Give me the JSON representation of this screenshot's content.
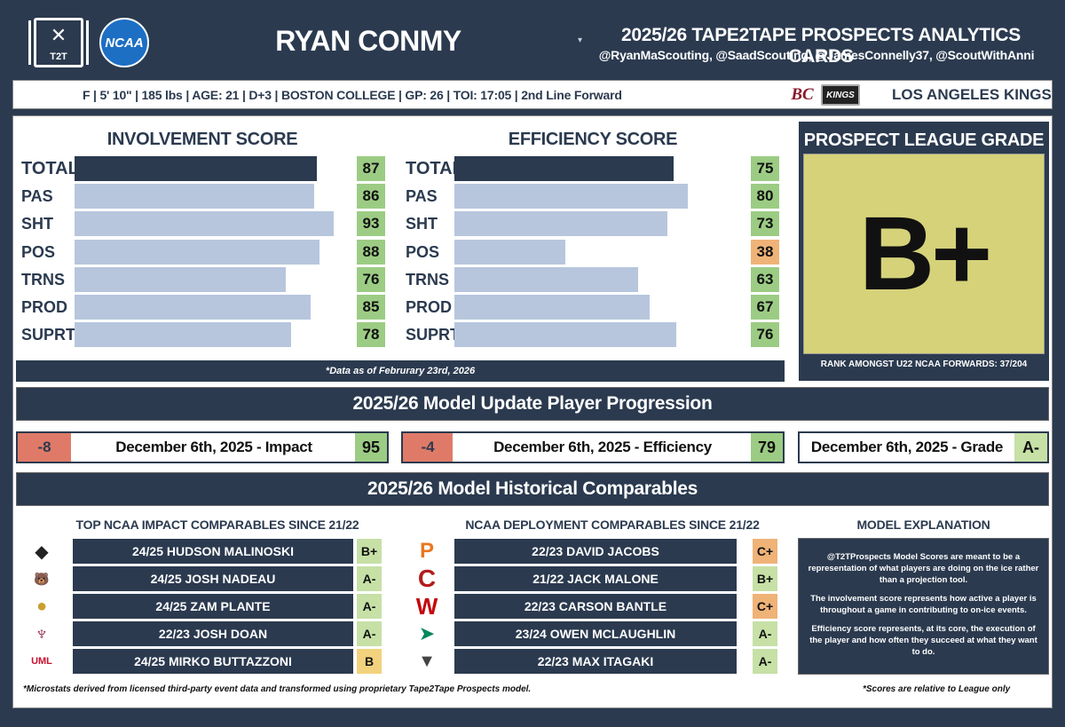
{
  "header": {
    "logo_t2t_text": "T2T",
    "logo_ncaa_text": "NCAA",
    "player_name": "RYAN CONMY",
    "title": "2025/26 TAPE2TAPE PROSPECTS ANALYTICS CARDS",
    "subtitle": "@RyanMaScouting, @SaadScouting, @JamesConnelly37, @ScoutWithAnni"
  },
  "info": {
    "line": "F  |  5' 10\"  |  185 lbs  |  AGE: 21  |  D+3  |  BOSTON COLLEGE  |  GP: 26  |  TOI: 17:05  |  2nd Line Forward",
    "bc_logo": "BC",
    "kings_logo": "KINGS",
    "team": "LOS ANGELES KINGS"
  },
  "involvement": {
    "title": "INVOLVEMENT SCORE",
    "rows": [
      {
        "label": "TOTAL",
        "value": 87,
        "fill": 0.866
      },
      {
        "label": "PAS",
        "value": 86,
        "fill": 0.856
      },
      {
        "label": "SHT",
        "value": 93,
        "fill": 0.926
      },
      {
        "label": "POS",
        "value": 88,
        "fill": 0.876
      },
      {
        "label": "TRNS",
        "value": 76,
        "fill": 0.756
      },
      {
        "label": "PROD",
        "value": 85,
        "fill": 0.846
      },
      {
        "label": "SUPRT",
        "value": 78,
        "fill": 0.776
      }
    ]
  },
  "efficiency": {
    "title": "EFFICIENCY SCORE",
    "rows": [
      {
        "label": "TOTAL",
        "value": 75,
        "fill": 0.747
      },
      {
        "label": "PAS",
        "value": 80,
        "fill": 0.796
      },
      {
        "label": "SHT",
        "value": 73,
        "fill": 0.727
      },
      {
        "label": "POS",
        "value": 38,
        "fill": 0.378
      },
      {
        "label": "TRNS",
        "value": 63,
        "fill": 0.627
      },
      {
        "label": "PROD",
        "value": 67,
        "fill": 0.667
      },
      {
        "label": "SUPRT",
        "value": 76,
        "fill": 0.757
      }
    ]
  },
  "data_note": "*Data as of Februrary 23rd, 2026",
  "grade": {
    "title": "PROSPECT LEAGUE GRADE",
    "value": "B+",
    "rank": "RANK AMONGST U22 NCAA FORWARDS: 37/204"
  },
  "progression": {
    "title": "2025/26 Model Update Player Progression",
    "impact": {
      "delta": "-8",
      "label": "December 6th, 2025 - Impact",
      "value": "95"
    },
    "efficiency": {
      "delta": "-4",
      "label": "December 6th, 2025 - Efficiency",
      "value": "79"
    },
    "grade": {
      "label": "December 6th, 2025 - Grade",
      "value": "A-"
    }
  },
  "historical": {
    "title": "2025/26 Model Historical Comparables",
    "impact_head": "TOP NCAA IMPACT COMPARABLES SINCE 21/22",
    "deploy_head": "NCAA DEPLOYMENT COMPARABLES SINCE 21/22",
    "expl_head": "MODEL EXPLANATION",
    "impact": [
      {
        "name": "24/25 HUDSON MALINOSKI",
        "grade": "B+",
        "logo": "providence-logo"
      },
      {
        "name": "24/25 JOSH NADEAU",
        "grade": "A-",
        "logo": "maine-logo"
      },
      {
        "name": "24/25 ZAM PLANTE",
        "grade": "A-",
        "logo": "umd-logo"
      },
      {
        "name": "22/23 JOSH DOAN",
        "grade": "A-",
        "logo": "asu-logo"
      },
      {
        "name": "24/25 MIRKO BUTTAZZONI",
        "grade": "B",
        "logo": "umass-lowell-logo"
      }
    ],
    "deploy": [
      {
        "name": "22/23 DAVID JACOBS",
        "grade": "C+",
        "logo": "princeton-logo"
      },
      {
        "name": "21/22 JACK MALONE",
        "grade": "B+",
        "logo": "cornell-logo"
      },
      {
        "name": "22/23 CARSON BANTLE",
        "grade": "C+",
        "logo": "wisconsin-logo"
      },
      {
        "name": "23/24 OWEN MCLAUGHLIN",
        "grade": "A-",
        "logo": "north-dakota-logo"
      },
      {
        "name": "22/23 MAX ITAGAKI",
        "grade": "A-",
        "logo": "army-logo"
      }
    ],
    "umass_text": "UMASS LOWELL",
    "maine_text": "MAINE",
    "expl_p1": "@T2TProspects Model Scores are meant to be a representation of what players are doing on the ice rather than a projection tool.",
    "expl_p2": "The involvement score represents how active a player is throughout a game in contributing to on-ice events.",
    "expl_p3": "Efficiency score represents, at its core, the execution of the player and how often they succeed at what they want to do.",
    "foot_left": "*Microstats derived from licensed third-party event data and transformed using proprietary Tape2Tape Prospects model.",
    "foot_right": "*Scores are relative to League only"
  },
  "colors": {
    "navy": "#2b3a4f",
    "bar_light": "#b7c6dd",
    "grade_yellow": "#d6d27a",
    "green": "#9ccc84",
    "orange": "#efb378",
    "yellow": "#f3d27d",
    "red_delta": "#e07a68"
  }
}
